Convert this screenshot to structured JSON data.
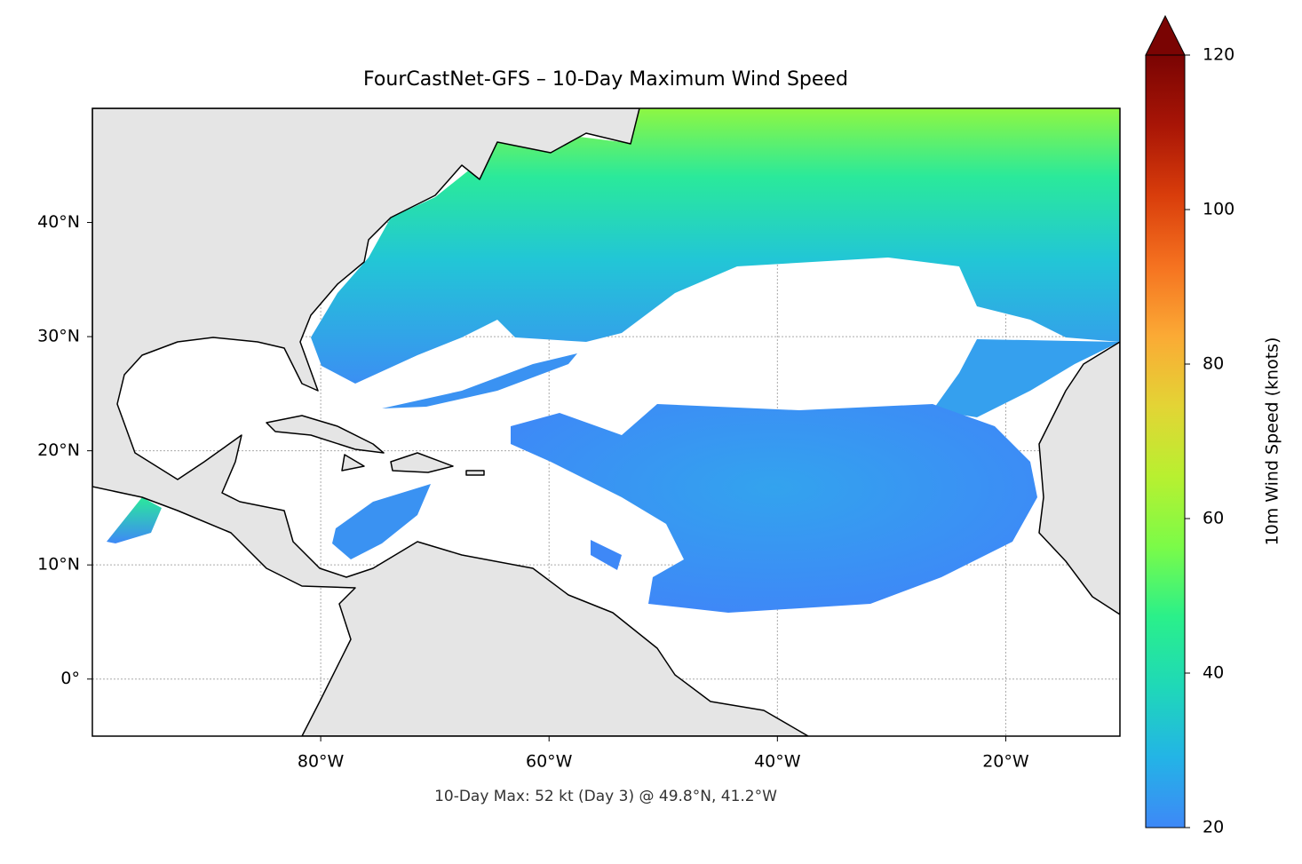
{
  "chart_data": {
    "type": "map",
    "title": "FourCastNet-GFS – 10-Day Maximum Wind Speed",
    "annotation": "10-Day Max: 52 kt (Day 3) @ 49.8°N, 41.2°W",
    "xlim": [
      -100,
      -10
    ],
    "ylim": [
      -5,
      50
    ],
    "xticks": [
      {
        "value": -80,
        "label": "80°W"
      },
      {
        "value": -60,
        "label": "60°W"
      },
      {
        "value": -40,
        "label": "40°W"
      },
      {
        "value": -20,
        "label": "20°W"
      }
    ],
    "yticks": [
      {
        "value": 0,
        "label": "0°"
      },
      {
        "value": 10,
        "label": "10°N"
      },
      {
        "value": 20,
        "label": "20°N"
      },
      {
        "value": 30,
        "label": "30°N"
      },
      {
        "value": 40,
        "label": "40°N"
      }
    ],
    "grid": true,
    "colorbar": {
      "label": "10m Wind Speed (knots)",
      "lim": [
        20,
        120
      ],
      "ticks": [
        20,
        40,
        60,
        80,
        100,
        120
      ],
      "extend": "max",
      "colors": [
        "#3e88f7",
        "#23b4e6",
        "#1fd8b8",
        "#2af08a",
        "#7bfb48",
        "#b8f030",
        "#e3d435",
        "#fbaa35",
        "#f57220",
        "#d93d0b",
        "#a81506",
        "#7a0403"
      ]
    }
  }
}
